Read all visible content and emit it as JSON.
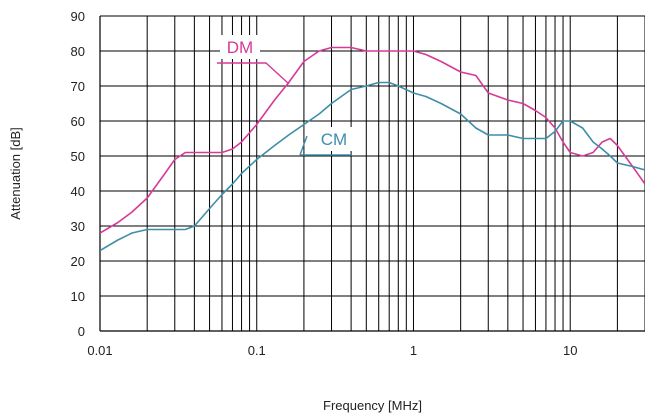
{
  "chart_data": {
    "type": "line",
    "xlabel": "Frequency [MHz]",
    "ylabel": "Attenuation [dB]",
    "x_scale": "log",
    "xlim": [
      0.01,
      30
    ],
    "ylim": [
      0,
      90
    ],
    "x_ticks": [
      {
        "value": 0.01,
        "label": "0.01"
      },
      {
        "value": 0.1,
        "label": "0.1"
      },
      {
        "value": 1,
        "label": "1"
      },
      {
        "value": 10,
        "label": "10"
      }
    ],
    "y_ticks": [
      0,
      10,
      20,
      30,
      40,
      50,
      60,
      70,
      80,
      90
    ],
    "grid": true,
    "series": [
      {
        "name": "DM",
        "color": "#d63a98",
        "x": [
          0.01,
          0.013,
          0.016,
          0.02,
          0.025,
          0.03,
          0.035,
          0.04,
          0.05,
          0.06,
          0.07,
          0.08,
          0.1,
          0.13,
          0.16,
          0.2,
          0.25,
          0.3,
          0.35,
          0.4,
          0.5,
          0.6,
          0.7,
          0.8,
          1.0,
          1.2,
          1.5,
          2.0,
          2.5,
          3.0,
          4.0,
          5.0,
          6.0,
          7.0,
          8.0,
          9.0,
          10,
          12,
          14,
          16,
          18,
          20,
          25,
          30
        ],
        "values": [
          28,
          31,
          34,
          38,
          44,
          49,
          51,
          51,
          51,
          51,
          52,
          54,
          59,
          66,
          71,
          77,
          80,
          81,
          81,
          81,
          80,
          80,
          80,
          80,
          80,
          79,
          77,
          74,
          73,
          68,
          66,
          65,
          63,
          61,
          58,
          54,
          51,
          50,
          51,
          54,
          55,
          53,
          47,
          42
        ]
      },
      {
        "name": "CM",
        "color": "#3f8ea8",
        "x": [
          0.01,
          0.013,
          0.016,
          0.02,
          0.025,
          0.03,
          0.035,
          0.04,
          0.05,
          0.06,
          0.07,
          0.08,
          0.1,
          0.13,
          0.16,
          0.2,
          0.25,
          0.3,
          0.4,
          0.5,
          0.6,
          0.7,
          0.8,
          1.0,
          1.2,
          1.5,
          2.0,
          2.5,
          3.0,
          4.0,
          5.0,
          6.0,
          7.0,
          8.0,
          9.0,
          10,
          12,
          14,
          16,
          18,
          20,
          25,
          30
        ],
        "values": [
          23,
          26,
          28,
          29,
          29,
          29,
          29,
          30,
          35,
          39,
          42,
          45,
          49,
          53,
          56,
          59,
          62,
          65,
          69,
          70,
          71,
          71,
          70,
          68,
          67,
          65,
          62,
          58,
          56,
          56,
          55,
          55,
          55,
          57,
          60,
          60,
          58,
          54,
          52,
          50,
          48,
          47,
          46
        ]
      }
    ]
  }
}
